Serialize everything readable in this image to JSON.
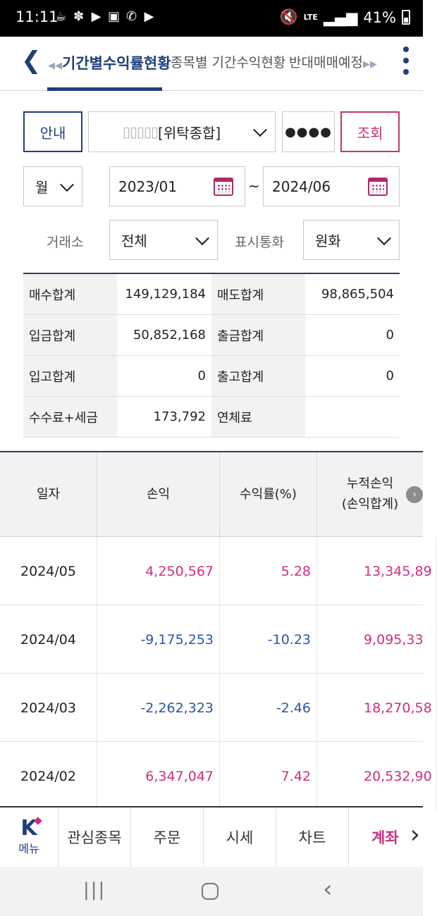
{
  "status": {
    "time": "11:11",
    "network": "LTE",
    "battery": "41%"
  },
  "tabs": {
    "prev": "기간별수익률현황",
    "mid": "종목별 기간수익현황",
    "next": "반대매매예정"
  },
  "controls": {
    "guide": "안내",
    "account_mask": "▯▯▯▯▯",
    "account_type": "[위탁종합]",
    "password_mask": "●●●●",
    "query": "조회",
    "period": "월",
    "start_date": "2023/01",
    "end_date": "2024/06",
    "separator": "~",
    "exchange_label": "거래소",
    "exchange_value": "전체",
    "currency_label": "표시통화",
    "currency_value": "원화"
  },
  "summary": [
    {
      "h1": "매수합계",
      "v1": "149,129,184",
      "h2": "매도합계",
      "v2": "98,865,504"
    },
    {
      "h1": "입금합계",
      "v1": "50,852,168",
      "h2": "출금합계",
      "v2": "0"
    },
    {
      "h1": "입고합계",
      "v1": "0",
      "h2": "출고합계",
      "v2": "0"
    },
    {
      "h1": "수수료+세금",
      "v1": "173,792",
      "h2": "연체료",
      "v2": ""
    }
  ],
  "grid": {
    "headers": {
      "date": "일자",
      "pnl": "손익",
      "rate": "수익률(%)",
      "cum": "누적손익",
      "cum_sub": "(손익합계)"
    },
    "rows": [
      {
        "date": "2024/05",
        "pnl": "4,250,567",
        "rate": "5.28",
        "cum": "13,345,89",
        "sign": "pos"
      },
      {
        "date": "2024/04",
        "pnl": "-9,175,253",
        "rate": "-10.23",
        "cum": "9,095,33",
        "sign": "neg"
      },
      {
        "date": "2024/03",
        "pnl": "-2,262,323",
        "rate": "-2.46",
        "cum": "18,270,58",
        "sign": "neg"
      },
      {
        "date": "2024/02",
        "pnl": "6,347,047",
        "rate": "7.42",
        "cum": "20,532,90",
        "sign": "pos"
      }
    ]
  },
  "bottom_menu": {
    "menu": "메뉴",
    "watch": "관심종목",
    "order": "주문",
    "quote": "시세",
    "chart": "차트",
    "account": "계좌"
  },
  "colors": {
    "brand_navy": "#1d3f7a",
    "accent_pink": "#c2366e",
    "positive": "#cf2e7f",
    "negative": "#2c56a8"
  }
}
